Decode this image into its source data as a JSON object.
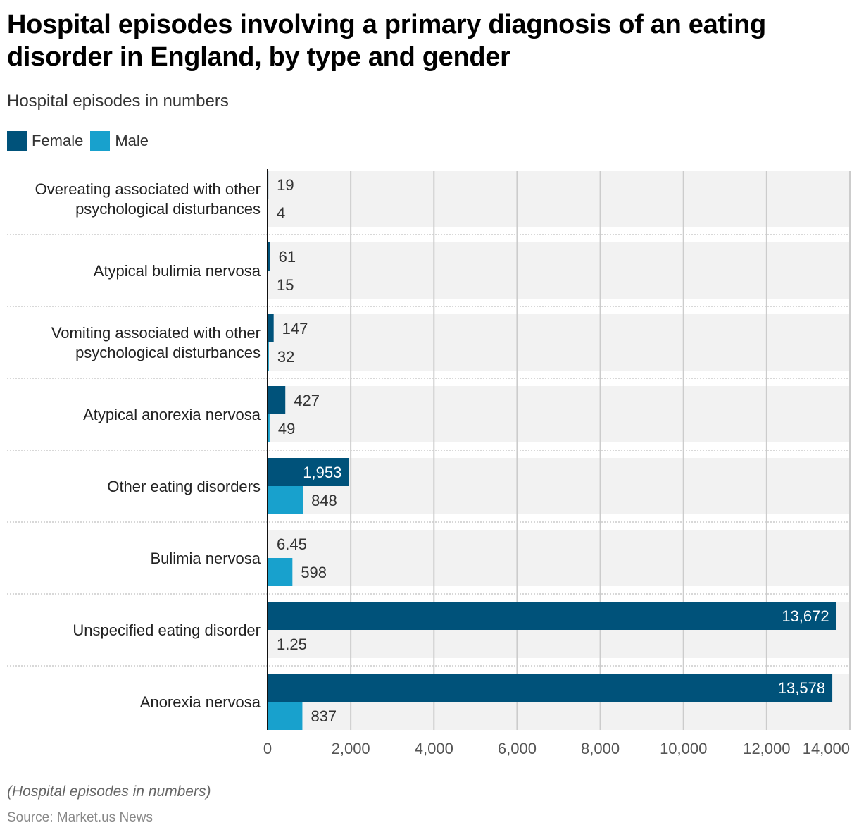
{
  "header": {
    "title": "Hospital episodes involving a primary diagnosis of an eating disorder in England, by type and gender",
    "subtitle": "Hospital episodes in numbers"
  },
  "footer": {
    "note": "(Hospital episodes in numbers)",
    "source": "Source: Market.us News"
  },
  "chart_data": {
    "type": "bar",
    "orientation": "horizontal",
    "title": "Hospital episodes involving a primary diagnosis of an eating disorder in England, by type and gender",
    "subtitle": "Hospital episodes in numbers",
    "xlabel": "",
    "ylabel": "",
    "xlim": [
      0,
      14000
    ],
    "xticks": [
      0,
      2000,
      4000,
      6000,
      8000,
      10000,
      12000,
      14000
    ],
    "xtick_labels": [
      "0",
      "2,000",
      "4,000",
      "6,000",
      "8,000",
      "10,000",
      "12,000",
      "14,000"
    ],
    "grid": true,
    "legend_position": "top-left",
    "categories": [
      [
        "Overeating associated with other",
        "psychological disturbances"
      ],
      [
        "Atypical bulimia nervosa"
      ],
      [
        "Vomiting associated with other",
        "psychological disturbances"
      ],
      [
        "Atypical anorexia nervosa"
      ],
      [
        "Other eating disorders"
      ],
      [
        "Bulimia nervosa"
      ],
      [
        "Unspecified eating disorder"
      ],
      [
        "Anorexia nervosa"
      ]
    ],
    "series": [
      {
        "name": "Female",
        "color": "#00527a",
        "values": [
          19,
          61,
          147,
          427,
          1953,
          6.45,
          13672,
          13578
        ],
        "labels": [
          "19",
          "61",
          "147",
          "427",
          "1,953",
          "6.45",
          "13,672",
          "13,578"
        ]
      },
      {
        "name": "Male",
        "color": "#18a1cd",
        "values": [
          4,
          15,
          32,
          49,
          848,
          598,
          1.25,
          837
        ],
        "labels": [
          "4",
          "15",
          "32",
          "49",
          "848",
          "598",
          "1.25",
          "837"
        ]
      }
    ]
  }
}
